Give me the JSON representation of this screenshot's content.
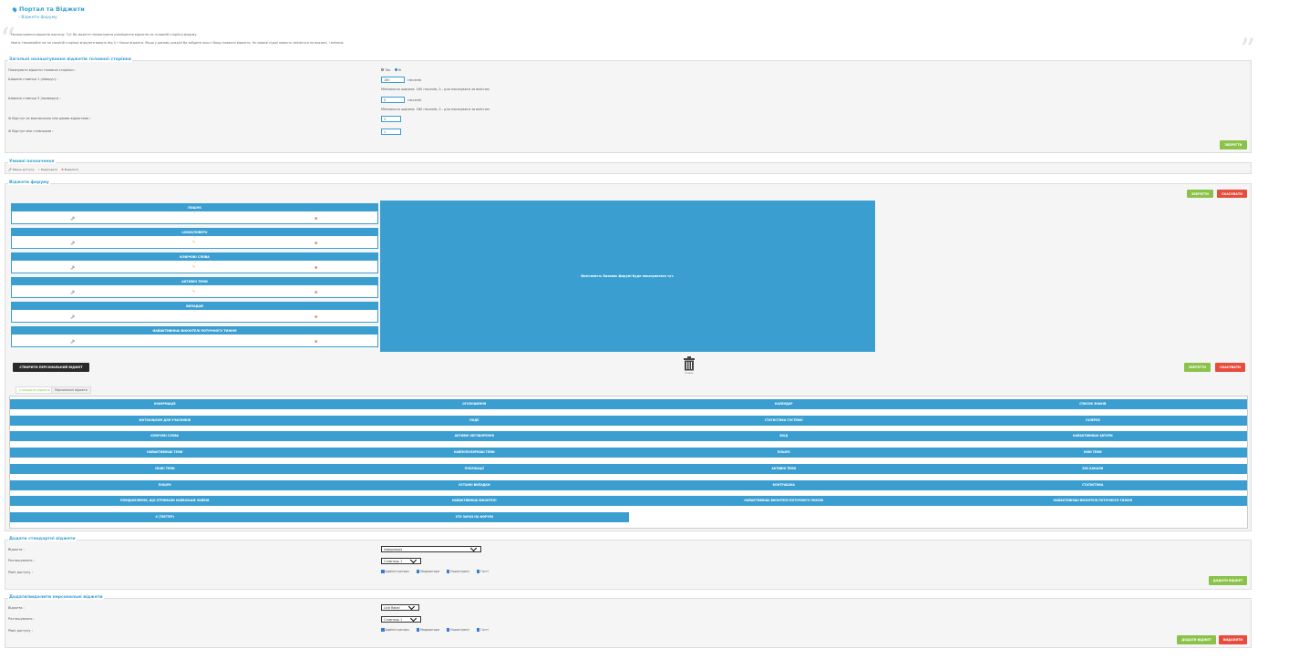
{
  "header": {
    "title": "Портал та Віджети",
    "breadcrumb": "Віджети форуму"
  },
  "intro": {
    "line1": "Налаштування віджетів порталу. Тут Ви можете налаштувати розміщення віджетів на головній сторінці форуму.",
    "line2": "Увага: Нажимайте на на сахаїсій сторінці вписувти ваерть від 0 і тільки віджети. Якщо у даному розділі Ви зайдете лиш з Вашу нахвати віджета, ліс мовляї підші повесть зміниться на вказані, і змінено."
  },
  "general": {
    "title": "Загальні налаштування віджетів головної сторінки",
    "rows": [
      {
        "label": "Показувати віджети головної сторінки :"
      },
      {
        "label": "Ширина стовпця 1 (ліворуч) :",
        "value": "180",
        "unit": "пікселів",
        "hint": "Мінімальна ширина: 180 пікселів, 0 - для показувати за вмістом"
      },
      {
        "label": "Ширина стовпця 3 (праворуч) :",
        "value": "0",
        "unit": "пікселів",
        "hint": "Мінімальна ширина: 180 пікселів, 0 - для показувати за вмістом"
      },
      {
        "label": "Відступ за вертикаллю між двома віджетами :",
        "value": "3"
      },
      {
        "label": "Відступ між стовпцями :",
        "value": "1"
      }
    ],
    "radio_yes": "Так",
    "radio_no": "Ні",
    "save": "ЗБЕРЕГТИ"
  },
  "legend": {
    "title": "Умовні позначення",
    "items": [
      "Рівень доступу",
      "Редагувати",
      "Видалити"
    ]
  },
  "widgets": {
    "title": "Віджети форуму",
    "save": "ЗБЕРЕГТИ",
    "cancel": "СКАСУВАТИ",
    "items": [
      {
        "title": "ПОШУК",
        "desc": "—",
        "edit": false
      },
      {
        "title": "LOGIN/ПОВЕРХ",
        "desc": "—",
        "edit": true
      },
      {
        "title": "КЛЮЧОВІ СЛОВА",
        "desc": "—",
        "edit": true
      },
      {
        "title": "АКТИВНІ ТЕМИ",
        "desc": "—",
        "edit": true
      },
      {
        "title": "ВИПАДАЙ",
        "desc": "—",
        "edit": false
      },
      {
        "title": "НАЙАКТИВНІШІ ВІКОНТЕЛІ ПОТОЧНОГО ТИЖНЯ",
        "desc": "—",
        "edit": false
      }
    ],
    "drop_area": "Вмістимість базових форумі буде показуватися тут.",
    "create_personal": "СТВОРИТИ ПЕРСОНАЛЬНИЙ ВІДЖЕТ",
    "trash_label": "Кошик",
    "tab_standard": "Стандартні віджети",
    "tab_personal": "Персональні віджети",
    "grid": [
      [
        "ІНФОРМАЦІЯ",
        "ОГОЛОШЕННЯ",
        "КАЛЕНДАР",
        "СПИСОК ЗНАКІВ"
      ],
      [
        "ФОТОАЛЬБОМ ДЛЯ УЧАСНИКІВ",
        "ПОДІЇ",
        "СТАТИСТИКА ГОСТЕВОЇ",
        "ГАЛЕРЕЯ"
      ],
      [
        "КЛЮЧОВІ СЛОВА",
        "АКТИВНІ ОБГОВОРЕННЯ",
        "ВХІД",
        "НАЙАКТИВНІШІ АВТОРИ"
      ],
      [
        "НАЙАКТИВНІШІ ТЕМИ",
        "НАЙПОПУЛЯРНІШІ ТЕМИ",
        "ПОШУК",
        "НОВІ ТЕМИ"
      ],
      [
        "СВІЖІ ТЕМИ",
        "ПУБЛІКАЦІЇ",
        "АКТИВНІ ТЕМИ",
        "RSS КАНАЛИ"
      ],
      [
        "ПОШУК",
        "ОСТАННІ ВИПАДКИ",
        "КОНТРАБАНА",
        "СТАТИСТИКА"
      ],
      [
        "ПОВІДОМЛЕННЯ, ЩО ОТРИМАЛИ НАЙБІЛЬШЕ ЛАЙКІВ",
        "НАЙАКТИВНІШІ ВІКОНТЕЛІ",
        "НАЙАКТИВНІШІ ВІКОНТЕЛІ ПОТОЧНОГО ПОКОЮ",
        "НАЙАКТИВНІШІ ВІКОНТЕЛІ ПОТОЧНОГО ТИЖНЯ"
      ],
      [
        "X (ТВІТТЕР)",
        "ХТО ЗАРАЗ НА ФОРУМІ"
      ]
    ]
  },
  "add_standard": {
    "title": "Додати стандартні віджети",
    "widget_label": "Віджети :",
    "widget_value": "Інформація",
    "place_label": "Розташування :",
    "place_value": "Стовпець 1",
    "access_label": "Рівні доступу :",
    "access": [
      "Адміністратори",
      "Модератори",
      "Користувачі",
      "Гості"
    ],
    "submit": "ДОДАТИ ВІДЖЕТ"
  },
  "add_personal": {
    "title": "Додати/видалити персональні віджети",
    "widget_label": "Віджети :",
    "widget_value": "Lkld Rabel",
    "place_label": "Розташування :",
    "place_value": "Стовпець 1",
    "access_label": "Рівні доступу :",
    "access": [
      "Адміністратори",
      "Модератори",
      "Користувачі",
      "Гості"
    ],
    "submit": "ДОДАТИ ВІДЖЕТ",
    "delete": "ВИДАЛИТИ"
  },
  "colors": {
    "accent": "#3a9fd0",
    "green": "#8bc34a",
    "red": "#e74c3c"
  }
}
